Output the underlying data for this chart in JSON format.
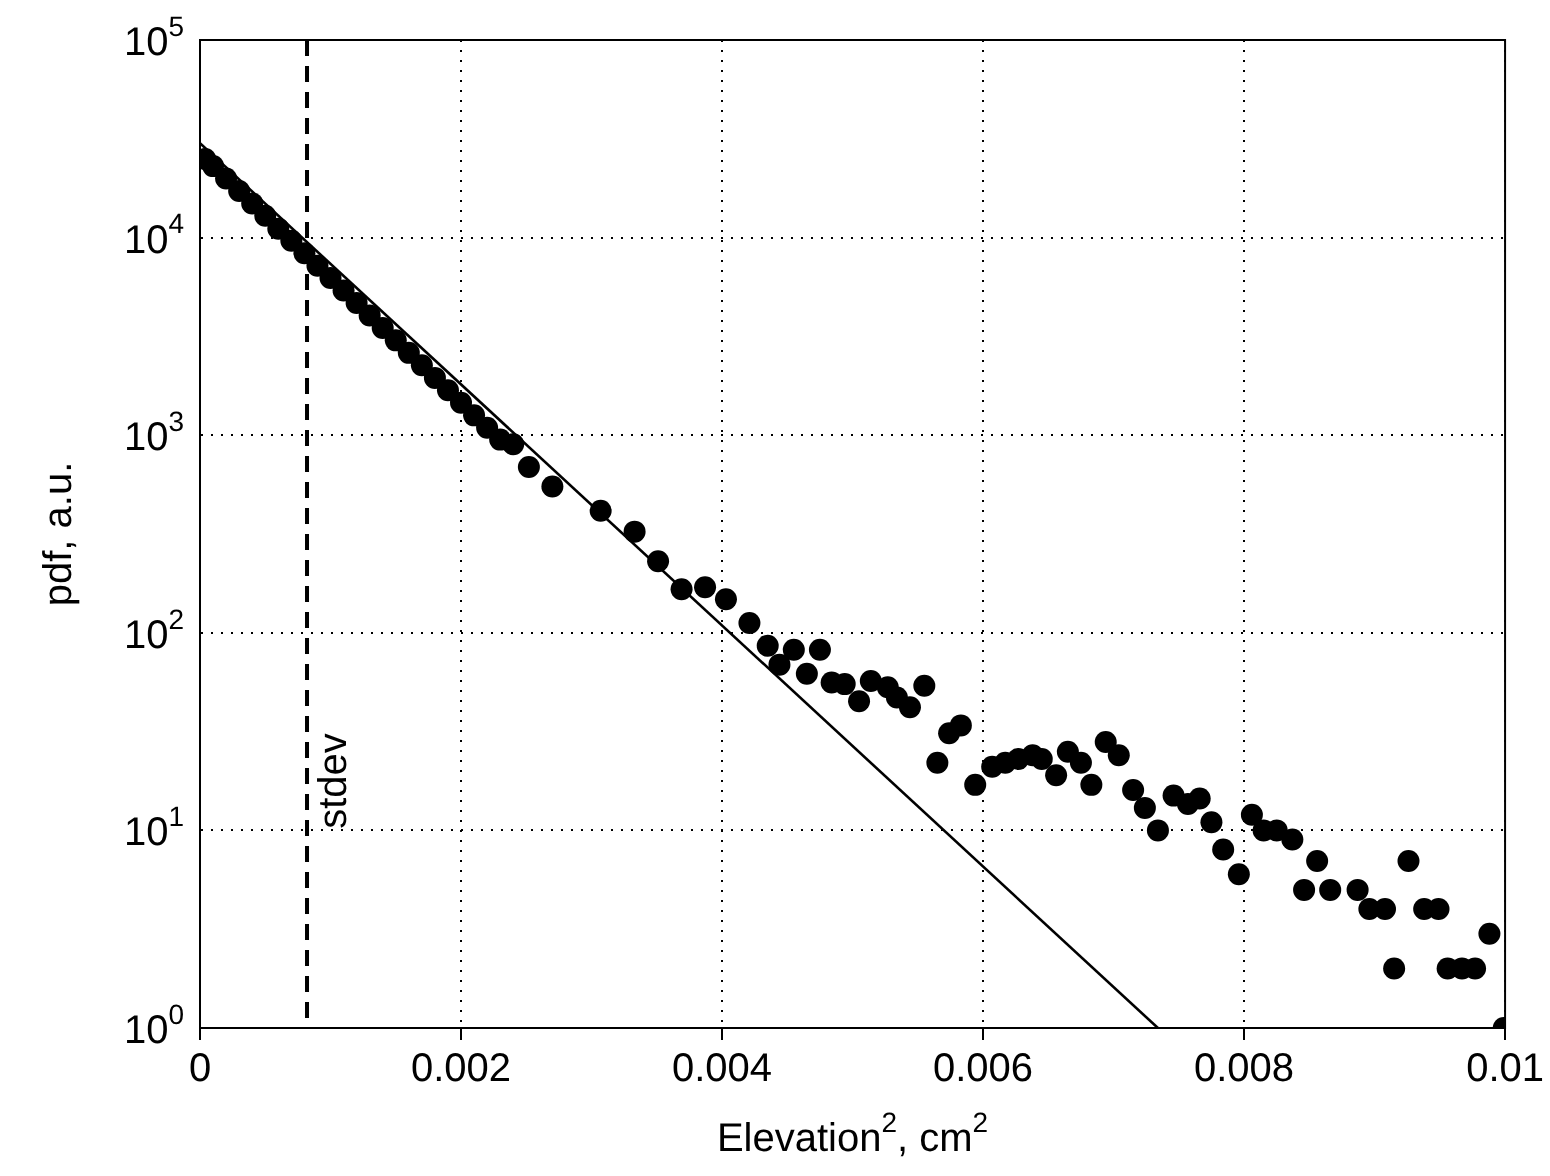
{
  "chart_data": {
    "type": "scatter",
    "xlabel": "Elevation$^{2}$, cm$^{2}$",
    "ylabel": "pdf, a.u.",
    "log": "y",
    "grid": true,
    "marker": "circle",
    "legend": false,
    "xlim": [
      0,
      0.01
    ],
    "xticks": [
      0,
      0.002,
      0.004,
      0.006,
      0.008,
      0.01
    ],
    "ylim": [
      1,
      100000
    ],
    "yticks": [
      {
        "value": 1,
        "label": "10$^{0}$"
      },
      {
        "value": 10,
        "label": "10$^{1}$"
      },
      {
        "value": 100,
        "label": "10$^{2}$"
      },
      {
        "value": 1000,
        "label": "10$^{3}$"
      },
      {
        "value": 10000,
        "label": "10$^{4}$"
      },
      {
        "value": 100000,
        "label": "10$^{5}$"
      }
    ],
    "ref_lines": [
      {
        "axis": "x",
        "value": 0.00082,
        "label": "stdev",
        "line_style": "dashed",
        "color": "#000000"
      }
    ],
    "series": [
      {
        "color": "#000000",
        "x": [
          4e-05,
          0.0001,
          0.0002,
          0.0003,
          0.0004,
          0.0005,
          0.0006,
          0.0007,
          0.0008,
          0.0009,
          0.001,
          0.0011,
          0.0012,
          0.0013,
          0.0014,
          0.0015,
          0.0016,
          0.0017,
          0.0018,
          0.0019,
          0.002,
          0.0021,
          0.0022,
          0.0023,
          0.0024,
          0.00252,
          0.0027,
          0.00307,
          0.00333,
          0.00351,
          0.00369,
          0.00387,
          0.00403,
          0.00421,
          0.00435,
          0.00444,
          0.00455,
          0.00465,
          0.00475,
          0.00484,
          0.00494,
          0.00505,
          0.00514,
          0.00527,
          0.00534,
          0.00544,
          0.00555,
          0.00565,
          0.00574,
          0.00583,
          0.00594,
          0.00607,
          0.00617,
          0.00627,
          0.00638,
          0.00645,
          0.00656,
          0.00665,
          0.00675,
          0.00683,
          0.00694,
          0.00704,
          0.00715,
          0.00724,
          0.00734,
          0.00746,
          0.00757,
          0.00766,
          0.00775,
          0.00784,
          0.00796,
          0.00806,
          0.00815,
          0.00825,
          0.00837,
          0.00846,
          0.00856,
          0.00866,
          0.00887,
          0.00896,
          0.00908,
          0.00915,
          0.00926,
          0.00938,
          0.00949,
          0.00956,
          0.00967,
          0.00977,
          0.00988,
          0.00999
        ],
        "values": [
          25000,
          23000,
          19900,
          17200,
          14900,
          12900,
          11100,
          9640,
          8340,
          7210,
          6240,
          5400,
          4670,
          4040,
          3490,
          3020,
          2610,
          2260,
          1950,
          1690,
          1460,
          1260,
          1090,
          950,
          900,
          690,
          550,
          415,
          325,
          230,
          166,
          170,
          148,
          112,
          86,
          69,
          82,
          62,
          82,
          56,
          55,
          45,
          57,
          53,
          47,
          42,
          54,
          22,
          31,
          34,
          17,
          21,
          22,
          23,
          24,
          23,
          19,
          25,
          22,
          17,
          28,
          24,
          16,
          13,
          10,
          15,
          13.6,
          14.5,
          11,
          8,
          6,
          12,
          10,
          10,
          9,
          5,
          7,
          5,
          5,
          4,
          4,
          2,
          7,
          4,
          4,
          2,
          2,
          2,
          3,
          1
        ]
      },
      {
        "type": "line",
        "color": "#000000",
        "marker": "none",
        "line_style": "solid",
        "x": [
          0,
          0.00734
        ],
        "values": [
          30000,
          1
        ]
      }
    ]
  }
}
